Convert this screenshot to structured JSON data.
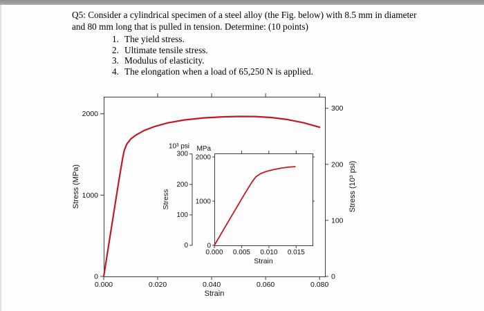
{
  "question": {
    "line1": "Q5: Consider a cylindrical specimen of a steel alloy (the Fig. below) with 8.5 mm in diameter",
    "line2": "and 80 mm long that is pulled in tension. Determine: (10 points)",
    "items": [
      {
        "number": "1.",
        "text": "The yield stress."
      },
      {
        "number": "2.",
        "text": "Ultimate tensile stress."
      },
      {
        "number": "3.",
        "text": "Modulus of elasticity."
      },
      {
        "number": "4.",
        "text": "The elongation when a load of 65,250 N is applied."
      }
    ]
  },
  "figure": {
    "curve_color": "#c2181f",
    "axis_color": "#3c3c3c"
  },
  "chart_data": [
    {
      "id": "main",
      "type": "line",
      "title": "",
      "xlabel": "Strain",
      "ylabel": "Stress (MPa)",
      "y2label": "Stress (10³ psi)",
      "xlim": [
        0,
        0.082
      ],
      "ylim": [
        0,
        2210
      ],
      "y2_unit_ratio": 6.8948,
      "xtick_values": [
        0,
        0.02,
        0.04,
        0.06,
        0.08
      ],
      "xtick_labels": [
        "0.000",
        "0.020",
        "0.040",
        "0.060",
        "0.080"
      ],
      "ytick_values": [
        0,
        1000,
        2000
      ],
      "ytick_labels": [
        "0",
        "1000",
        "2000"
      ],
      "y2tick_values": [
        0,
        100,
        200,
        300
      ],
      "y2tick_labels": [
        "0",
        "100",
        "200",
        "300"
      ],
      "legend": "none",
      "grid": false,
      "line_color": "#c2181f",
      "series": [
        {
          "name": "stress-strain curve",
          "x": [
            0,
            0.001,
            0.002,
            0.003,
            0.004,
            0.005,
            0.006,
            0.007,
            0.0076,
            0.0085,
            0.01,
            0.012,
            0.015,
            0.019,
            0.024,
            0.03,
            0.037,
            0.044,
            0.05,
            0.056,
            0.062,
            0.068,
            0.074,
            0.08
          ],
          "y": [
            0,
            210,
            420,
            630,
            840,
            1050,
            1255,
            1450,
            1550,
            1625,
            1690,
            1740,
            1795,
            1845,
            1890,
            1925,
            1950,
            1963,
            1968,
            1967,
            1955,
            1930,
            1890,
            1835
          ]
        }
      ]
    },
    {
      "id": "inset",
      "type": "line",
      "title": "",
      "xlabel": "Strain",
      "ylabel": "Stress",
      "unit_left_outer": "10³ psi",
      "unit_left_inner": "MPa",
      "xlim": [
        0,
        0.018
      ],
      "ylim": [
        0,
        2080
      ],
      "y2_unit_ratio": 6.8948,
      "xtick_values": [
        0,
        0.005,
        0.01,
        0.015
      ],
      "xtick_labels": [
        "0.000",
        "0.005",
        "0.010",
        "0.015"
      ],
      "ytick_values": [
        0,
        1000,
        2000
      ],
      "ytick_labels": [
        "0",
        "1000",
        "2000"
      ],
      "psi_tick_values": [
        0,
        100,
        200,
        300
      ],
      "psi_tick_labels": [
        "0",
        "100",
        "200",
        "300"
      ],
      "legend": "none",
      "grid": false,
      "line_color": "#c2181f",
      "series": [
        {
          "name": "stress-strain curve (initial region)",
          "x": [
            0,
            0.001,
            0.002,
            0.003,
            0.004,
            0.005,
            0.006,
            0.007,
            0.0076,
            0.0085,
            0.0095,
            0.0108,
            0.0122,
            0.0135,
            0.0148
          ],
          "y": [
            0,
            210,
            420,
            630,
            840,
            1050,
            1255,
            1450,
            1550,
            1625,
            1672,
            1712,
            1745,
            1768,
            1782
          ]
        }
      ]
    }
  ]
}
